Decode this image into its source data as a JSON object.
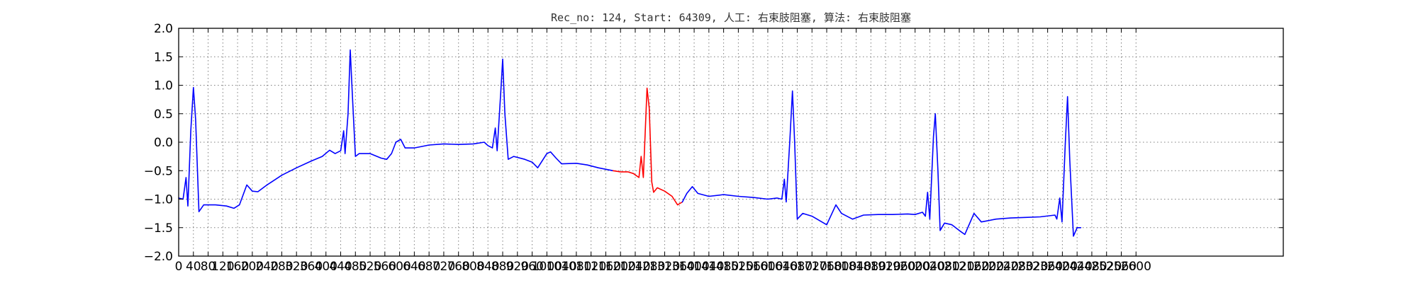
{
  "chart_data": {
    "type": "line",
    "title": "Rec_no: 124, Start: 64309, 人工: 右束肢阻塞, 算法: 右束肢阻塞",
    "xlabel": "",
    "ylabel": "",
    "xlim": [
      0,
      3000
    ],
    "ylim": [
      -2.0,
      2.0
    ],
    "grid": true,
    "xticks": [
      0,
      40,
      80,
      120,
      160,
      200,
      240,
      280,
      320,
      360,
      400,
      440,
      480,
      520,
      560,
      600,
      640,
      680,
      720,
      760,
      800,
      840,
      880,
      920,
      960,
      1000,
      1040,
      1080,
      1120,
      1160,
      1200,
      1240,
      1280,
      1320,
      1360,
      1400,
      1440,
      1480,
      1520,
      1560,
      1600,
      1640,
      1680,
      1720,
      1760,
      1800,
      1840,
      1880,
      1920,
      1960,
      2000,
      2040,
      2080,
      2120,
      2160,
      2200,
      2240,
      2280,
      2320,
      2360,
      2400,
      2440,
      2480,
      2520,
      2560,
      2600
    ],
    "xtick_labels": [
      "0",
      "40",
      "80",
      "120",
      "160",
      "200",
      "240",
      "280",
      "320",
      "360",
      "400",
      "440",
      "480",
      "520",
      "560",
      "600",
      "640",
      "680",
      "720",
      "760",
      "800",
      "840",
      "880",
      "920",
      "960",
      "1000",
      "1040",
      "1080",
      "1120",
      "1160",
      "1200",
      "1240",
      "1280",
      "1320",
      "1360",
      "1400",
      "1440",
      "1480",
      "1520",
      "1560",
      "1600",
      "1640",
      "1680",
      "1720",
      "1760",
      "1800",
      "1840",
      "1880",
      "1920",
      "1960",
      "2000",
      "2040",
      "2080",
      "2120",
      "2160",
      "2200",
      "2240",
      "2280",
      "2320",
      "2360",
      "2400",
      "2440",
      "2480",
      "2520",
      "2560",
      "2600"
    ],
    "yticks": [
      -2.0,
      -1.5,
      -1.0,
      -0.5,
      0.0,
      0.5,
      1.0,
      1.5,
      2.0
    ],
    "ytick_labels": [
      "−2.0",
      "−1.5",
      "−1.0",
      "−0.5",
      "0.0",
      "0.5",
      "1.0",
      "1.5",
      "2.0"
    ],
    "series": [
      {
        "color": "#0000ff",
        "points": [
          [
            0,
            -0.98
          ],
          [
            12,
            -1.0
          ],
          [
            20,
            -0.62
          ],
          [
            25,
            -1.12
          ],
          [
            33,
            0.2
          ],
          [
            40,
            0.96
          ],
          [
            46,
            0.4
          ],
          [
            55,
            -1.22
          ],
          [
            68,
            -1.1
          ],
          [
            100,
            -1.1
          ],
          [
            130,
            -1.12
          ],
          [
            150,
            -1.16
          ],
          [
            165,
            -1.1
          ],
          [
            185,
            -0.75
          ],
          [
            200,
            -0.86
          ],
          [
            215,
            -0.87
          ],
          [
            240,
            -0.75
          ],
          [
            280,
            -0.58
          ],
          [
            320,
            -0.45
          ],
          [
            360,
            -0.33
          ],
          [
            390,
            -0.25
          ],
          [
            410,
            -0.14
          ],
          [
            425,
            -0.2
          ],
          [
            440,
            -0.15
          ],
          [
            448,
            0.2
          ],
          [
            452,
            -0.2
          ],
          [
            460,
            0.5
          ],
          [
            466,
            1.62
          ],
          [
            472,
            0.8
          ],
          [
            480,
            -0.25
          ],
          [
            490,
            -0.2
          ],
          [
            520,
            -0.2
          ],
          [
            550,
            -0.28
          ],
          [
            565,
            -0.3
          ],
          [
            578,
            -0.2
          ],
          [
            590,
            0.0
          ],
          [
            603,
            0.05
          ],
          [
            615,
            -0.1
          ],
          [
            640,
            -0.1
          ],
          [
            680,
            -0.05
          ],
          [
            720,
            -0.03
          ],
          [
            760,
            -0.04
          ],
          [
            800,
            -0.03
          ],
          [
            830,
            0.0
          ],
          [
            840,
            -0.06
          ],
          [
            852,
            -0.1
          ],
          [
            860,
            0.25
          ],
          [
            865,
            -0.15
          ],
          [
            875,
            0.9
          ],
          [
            880,
            1.46
          ],
          [
            886,
            0.5
          ],
          [
            895,
            -0.3
          ],
          [
            910,
            -0.25
          ],
          [
            940,
            -0.3
          ],
          [
            960,
            -0.35
          ],
          [
            975,
            -0.45
          ],
          [
            1000,
            -0.2
          ],
          [
            1010,
            -0.17
          ],
          [
            1025,
            -0.28
          ],
          [
            1040,
            -0.38
          ],
          [
            1080,
            -0.37
          ],
          [
            1110,
            -0.4
          ],
          [
            1140,
            -0.45
          ],
          [
            1180,
            -0.5
          ]
        ]
      },
      {
        "color": "#ff0000",
        "points": [
          [
            1180,
            -0.5
          ],
          [
            1200,
            -0.52
          ],
          [
            1220,
            -0.52
          ],
          [
            1235,
            -0.55
          ],
          [
            1250,
            -0.62
          ],
          [
            1256,
            -0.25
          ],
          [
            1262,
            -0.62
          ],
          [
            1272,
            0.95
          ],
          [
            1278,
            0.6
          ],
          [
            1285,
            -0.7
          ],
          [
            1290,
            -0.88
          ],
          [
            1300,
            -0.8
          ],
          [
            1320,
            -0.86
          ],
          [
            1340,
            -0.95
          ],
          [
            1355,
            -1.1
          ],
          [
            1368,
            -1.05
          ]
        ]
      },
      {
        "color": "#0000ff",
        "points": [
          [
            1368,
            -1.05
          ],
          [
            1380,
            -0.9
          ],
          [
            1395,
            -0.78
          ],
          [
            1410,
            -0.9
          ],
          [
            1440,
            -0.95
          ],
          [
            1480,
            -0.92
          ],
          [
            1520,
            -0.95
          ],
          [
            1560,
            -0.97
          ],
          [
            1600,
            -1.0
          ],
          [
            1625,
            -0.98
          ],
          [
            1638,
            -1.0
          ],
          [
            1645,
            -0.65
          ],
          [
            1650,
            -1.05
          ],
          [
            1660,
            0.05
          ],
          [
            1667,
            0.9
          ],
          [
            1673,
            0.0
          ],
          [
            1680,
            -1.35
          ],
          [
            1695,
            -1.25
          ],
          [
            1720,
            -1.3
          ],
          [
            1760,
            -1.45
          ],
          [
            1785,
            -1.1
          ],
          [
            1800,
            -1.25
          ],
          [
            1830,
            -1.35
          ],
          [
            1860,
            -1.28
          ],
          [
            1900,
            -1.27
          ],
          [
            1940,
            -1.27
          ],
          [
            1980,
            -1.26
          ],
          [
            2000,
            -1.27
          ],
          [
            2020,
            -1.23
          ],
          [
            2028,
            -1.3
          ],
          [
            2034,
            -0.88
          ],
          [
            2040,
            -1.35
          ],
          [
            2050,
            0.1
          ],
          [
            2055,
            0.5
          ],
          [
            2062,
            -0.5
          ],
          [
            2068,
            -1.55
          ],
          [
            2080,
            -1.42
          ],
          [
            2100,
            -1.45
          ],
          [
            2120,
            -1.55
          ],
          [
            2135,
            -1.62
          ],
          [
            2160,
            -1.25
          ],
          [
            2180,
            -1.4
          ],
          [
            2220,
            -1.35
          ],
          [
            2260,
            -1.33
          ],
          [
            2300,
            -1.32
          ],
          [
            2340,
            -1.31
          ],
          [
            2380,
            -1.28
          ],
          [
            2385,
            -1.35
          ],
          [
            2393,
            -0.98
          ],
          [
            2399,
            -1.4
          ],
          [
            2408,
            0.0
          ],
          [
            2414,
            0.8
          ],
          [
            2420,
            -0.3
          ],
          [
            2430,
            -1.65
          ],
          [
            2440,
            -1.5
          ],
          [
            2450,
            -1.5
          ]
        ]
      }
    ]
  }
}
